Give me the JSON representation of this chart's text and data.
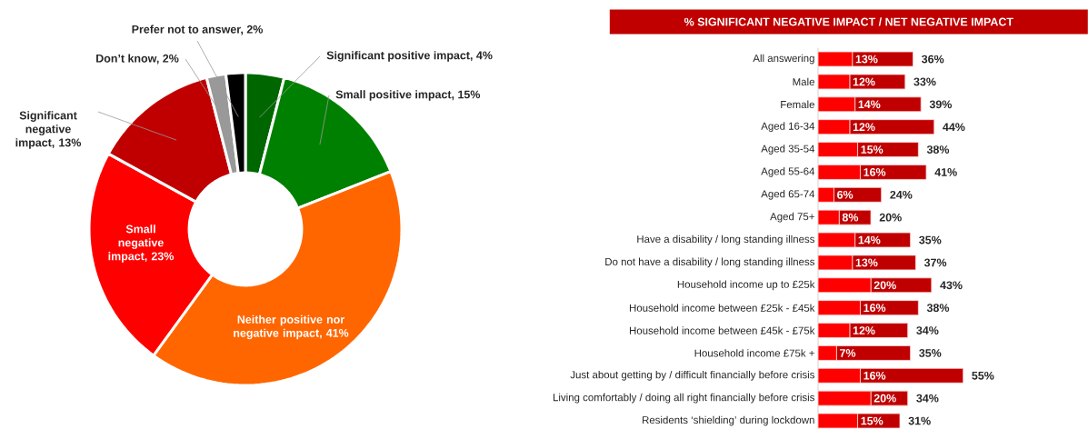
{
  "chart_data": [
    {
      "type": "donut",
      "categories": [
        "Significant positive impact, 4%",
        "Small positive impact, 15%",
        "Neither positive nor negative impact, 41%",
        "Small negative impact, 23%",
        "Significant negative impact, 13%",
        "Don’t know, 2%",
        "Prefer not to answer, 2%"
      ],
      "values": [
        4,
        15,
        41,
        23,
        13,
        2,
        2
      ],
      "colors": [
        "#006600",
        "#008000",
        "#ff6600",
        "#ff0000",
        "#c00000",
        "#999999",
        "#000000"
      ]
    },
    {
      "type": "bar",
      "orientation": "horizontal",
      "stacked": true,
      "title": "% SIGNIFICANT NEGATIVE IMPACT / NET NEGATIVE IMPACT",
      "categories": [
        "All answering",
        "Male",
        "Female",
        "Aged 16-34",
        "Aged 35-54",
        "Aged 55-64",
        "Aged 65-74",
        "Aged 75+",
        "Have a disability / long standing illness",
        "Do not have a disability / long standing illness",
        "Household income up to £25k",
        "Household income between £25k - £45k",
        "Household income between £45k - £75k",
        "Household income £75k +",
        "Just about getting by / difficult financially before crisis",
        "Living comfortably / doing all right financially before crisis",
        "Residents ‘shielding’ during lockdown"
      ],
      "series": [
        {
          "color": "#ff0000",
          "values": [
            13,
            12,
            14,
            12,
            15,
            16,
            6,
            8,
            14,
            13,
            20,
            16,
            12,
            7,
            16,
            20,
            15
          ],
          "value_labels": [
            "13%",
            "12%",
            "14%",
            "12%",
            "15%",
            "16%",
            "6%",
            "8%",
            "14%",
            "13%",
            "20%",
            "16%",
            "12%",
            "7%",
            "16%",
            "20%",
            "15%"
          ]
        },
        {
          "color": "#c00000",
          "values": [
            23,
            21,
            25,
            32,
            23,
            25,
            18,
            12,
            21,
            24,
            23,
            22,
            22,
            28,
            39,
            14,
            16
          ]
        }
      ],
      "totals": [
        "36%",
        "33%",
        "39%",
        "44%",
        "38%",
        "41%",
        "24%",
        "20%",
        "35%",
        "37%",
        "43%",
        "38%",
        "34%",
        "35%",
        "55%",
        "34%",
        "31%"
      ]
    }
  ]
}
